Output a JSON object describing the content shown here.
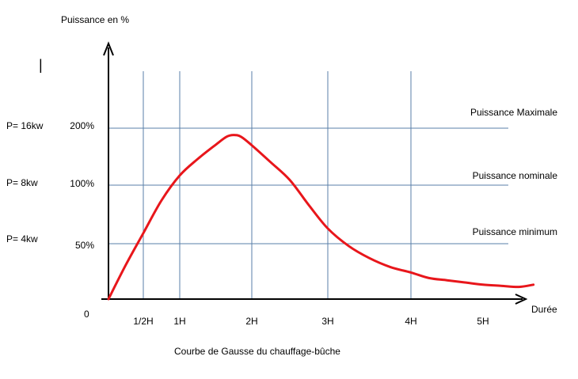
{
  "chart_data": {
    "type": "line",
    "ylabel": "Puissance en %",
    "xlabel": "Durée",
    "caption": "Courbe de Gausse du chauffage-bûche",
    "origin_label": "0",
    "x_ticks": [
      {
        "label": "1/2H",
        "value": 0.5
      },
      {
        "label": "1H",
        "value": 1
      },
      {
        "label": "2H",
        "value": 2
      },
      {
        "label": "3H",
        "value": 3
      },
      {
        "label": "4H",
        "value": 4
      },
      {
        "label": "5H",
        "value": 5
      }
    ],
    "y_ticks": [
      {
        "label": "50%",
        "value": 50,
        "power": "P= 4kw",
        "line_label": "Puissance minimum"
      },
      {
        "label": "100%",
        "value": 100,
        "power": "P= 8kw",
        "line_label": "Puissance nominale"
      },
      {
        "label": "200%",
        "value": 200,
        "power": "P= 16kw",
        "line_label": "Puissance Maximale"
      }
    ],
    "series": [
      {
        "color": "#e8161b",
        "x": [
          0,
          0.25,
          0.5,
          0.75,
          1.0,
          1.25,
          1.5,
          1.65,
          1.75,
          1.85,
          2.0,
          2.25,
          2.5,
          2.75,
          3.0,
          3.25,
          3.5,
          3.75,
          4.0,
          4.25,
          4.5,
          4.75,
          5.0,
          5.25,
          5.5,
          5.7
        ],
        "y": [
          0,
          31,
          59,
          87,
          117,
          146,
          171,
          185,
          188,
          185,
          170,
          140,
          109,
          83,
          63,
          48,
          37,
          29,
          24,
          19,
          17,
          15,
          13,
          12,
          11,
          13
        ]
      }
    ]
  },
  "stray_mark": "|"
}
